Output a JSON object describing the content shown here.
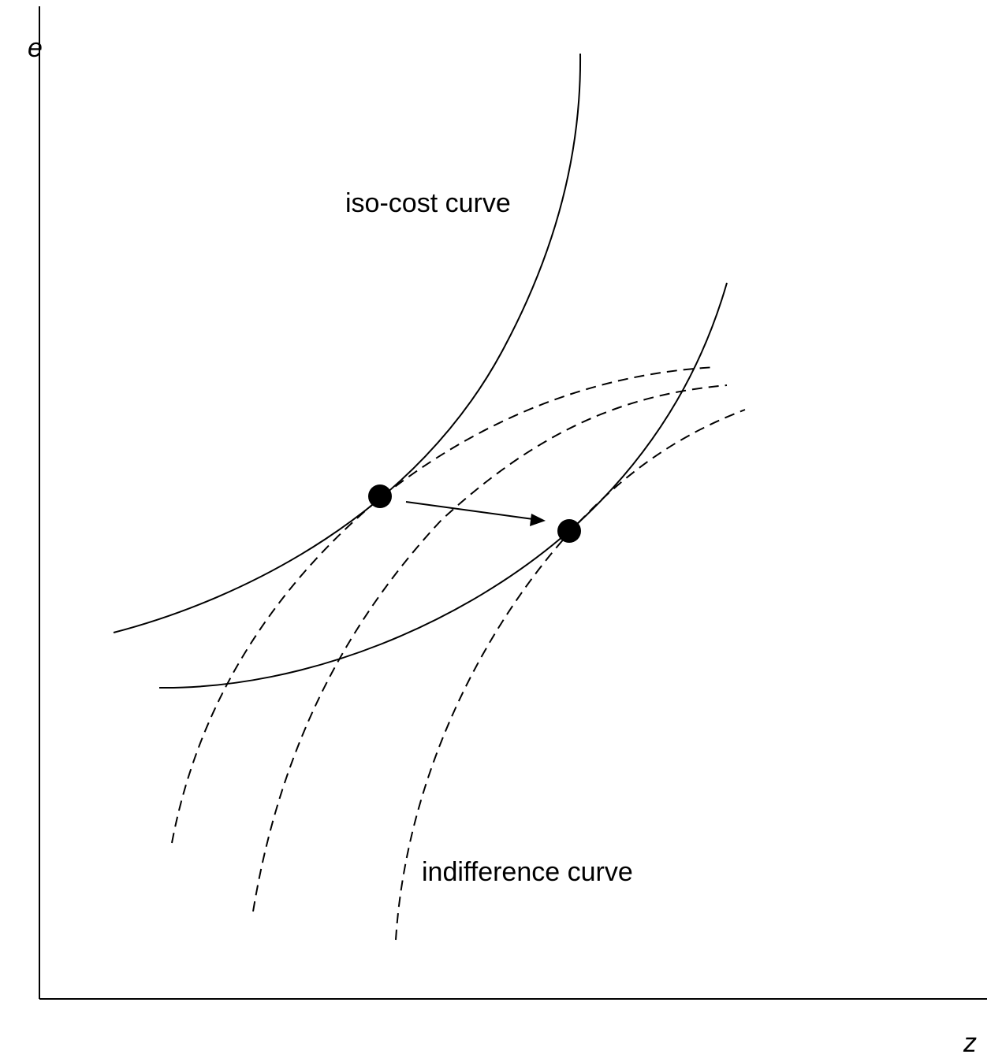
{
  "axes": {
    "y_label": "e",
    "x_label": "z"
  },
  "labels": {
    "iso_cost": "iso-cost curve",
    "indifference": "indifference curve"
  },
  "curves": {
    "iso_cost_count": 2,
    "indifference_count": 3,
    "line_color": "#000000"
  },
  "tangency": {
    "point_count": 2,
    "arrow_direction": "right-down"
  }
}
